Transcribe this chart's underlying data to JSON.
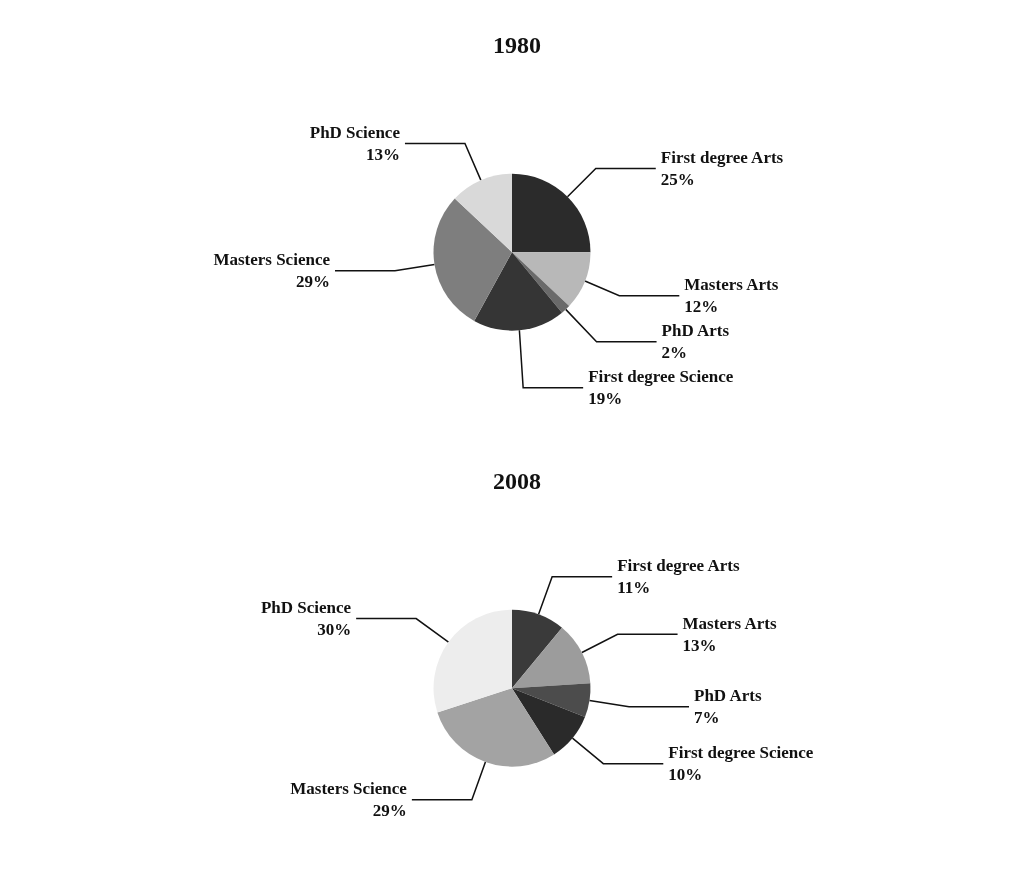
{
  "chart_data": [
    {
      "type": "pie",
      "title": "1980",
      "categories": [
        "First degree Arts",
        "Masters Arts",
        "PhD Arts",
        "First degree Science",
        "Masters Science",
        "PhD Science"
      ],
      "values": [
        25,
        12,
        2,
        19,
        29,
        13
      ],
      "value_labels": [
        "25%",
        "12%",
        "2%",
        "19%",
        "29%",
        "13%"
      ],
      "colors": [
        "#2b2b2b",
        "#b8b8b8",
        "#6a6a6a",
        "#353535",
        "#7e7e7e",
        "#d9d9d9"
      ],
      "legend": false
    },
    {
      "type": "pie",
      "title": "2008",
      "categories": [
        "First degree Arts",
        "Masters Arts",
        "PhD Arts",
        "First degree Science",
        "Masters Science",
        "PhD Science"
      ],
      "values": [
        11,
        13,
        7,
        10,
        29,
        30
      ],
      "value_labels": [
        "11%",
        "13%",
        "7%",
        "10%",
        "29%",
        "30%"
      ],
      "colors": [
        "#3a3a3a",
        "#9c9c9c",
        "#4c4c4c",
        "#2a2a2a",
        "#a3a3a3",
        "#ededed"
      ],
      "legend": false
    }
  ]
}
